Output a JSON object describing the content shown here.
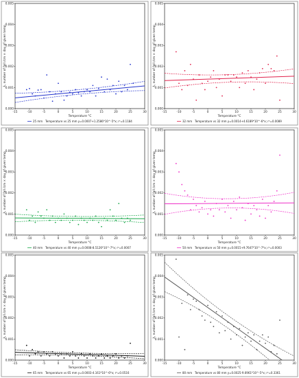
{
  "chart_data": [
    {
      "type": "scatter",
      "color": "#2233cc",
      "xlabel": "Temperature °C",
      "ylabel": "λ, number of fall /cm × day of given temp",
      "xlim": [
        -15,
        30
      ],
      "ylim": [
        0,
        0.005
      ],
      "xticks": [
        "-15",
        "-10",
        "-5",
        "0",
        "5",
        "10",
        "15",
        "20",
        "25",
        "30"
      ],
      "yticks": [
        "0.000",
        "0.001",
        "0.002",
        "0.003",
        "0.004",
        "0.005"
      ],
      "series_label": "25 mm",
      "legend_text": "Temperature vs 25 mm     y=0.0007+1.2586*10^-5*x; r²=0.1184",
      "fit": {
        "intercept": 0.0007,
        "slope": 1.2586e-05
      },
      "ci_spread": [
        0.00022,
        0.00011,
        0.00022
      ],
      "points": [
        [
          -11,
          0.0009
        ],
        [
          -10,
          0.00095
        ],
        [
          -9,
          0.0007
        ],
        [
          -8,
          0.0006
        ],
        [
          -7,
          0.00088
        ],
        [
          -6,
          0.0009
        ],
        [
          -5,
          0.0005
        ],
        [
          -4,
          0.0016
        ],
        [
          -3,
          0.0008
        ],
        [
          -2,
          0.00035
        ],
        [
          -1,
          0.0007
        ],
        [
          0,
          0.0012
        ],
        [
          1,
          0.0008
        ],
        [
          2,
          0.0004
        ],
        [
          3,
          0.0006
        ],
        [
          4,
          0.00078
        ],
        [
          5,
          0.0007
        ],
        [
          6,
          0.0009
        ],
        [
          7,
          0.00075
        ],
        [
          8,
          0.0006
        ],
        [
          9,
          0.0008
        ],
        [
          10,
          0.0009
        ],
        [
          11,
          0.0008
        ],
        [
          12,
          0.0011
        ],
        [
          13,
          0.0006
        ],
        [
          14,
          0.00095
        ],
        [
          15,
          0.0015
        ],
        [
          16,
          0.0008
        ],
        [
          17,
          0.0014
        ],
        [
          18,
          0.0009
        ],
        [
          19,
          0.0011
        ],
        [
          20,
          0.0007
        ],
        [
          21,
          0.0013
        ],
        [
          22,
          0.0008
        ],
        [
          23,
          0.0011
        ],
        [
          24,
          0.0009
        ],
        [
          25,
          0.0021
        ],
        [
          26,
          0.0012
        ]
      ]
    },
    {
      "type": "scatter",
      "color": "#e0204a",
      "xlabel": "Temperature °C",
      "ylabel": "λ, number of fall /cm × day of given temp",
      "xlim": [
        -15,
        30
      ],
      "ylim": [
        0,
        0.005
      ],
      "xticks": [
        "-15",
        "-10",
        "-5",
        "0",
        "5",
        "10",
        "15",
        "20",
        "25",
        "30"
      ],
      "yticks": [
        "0.000",
        "0.001",
        "0.002",
        "0.003",
        "0.004",
        "0.005"
      ],
      "series_label": "32 mm",
      "legend_text": "Temperature vs 32 mm     y=0.0014+4.6189*10^-6*x; r²=0.0089",
      "fit": {
        "intercept": 0.0014,
        "slope": 4.6189e-06
      },
      "ci_spread": [
        0.00035,
        0.00018,
        0.00035
      ],
      "points": [
        [
          -11,
          0.0027
        ],
        [
          -10,
          0.0012
        ],
        [
          -9,
          0.0009
        ],
        [
          -8,
          0.0018
        ],
        [
          -7,
          0.0011
        ],
        [
          -6,
          0.0021
        ],
        [
          -5,
          0.0014
        ],
        [
          -4,
          0.0004
        ],
        [
          -3,
          0.0016
        ],
        [
          -2,
          0.0012
        ],
        [
          -1,
          0.0009
        ],
        [
          0,
          0.0013
        ],
        [
          1,
          0.0015
        ],
        [
          2,
          0.0018
        ],
        [
          3,
          0.001
        ],
        [
          4,
          0.0014
        ],
        [
          5,
          0.0006
        ],
        [
          6,
          0.0016
        ],
        [
          7,
          0.0016
        ],
        [
          8,
          0.0013
        ],
        [
          9,
          0.0016
        ],
        [
          10,
          0.0015
        ],
        [
          11,
          0.001
        ],
        [
          12,
          0.0017
        ],
        [
          13,
          0.0012
        ],
        [
          14,
          0.0018
        ],
        [
          15,
          0.0015
        ],
        [
          16,
          0.0009
        ],
        [
          17,
          0.0014
        ],
        [
          18,
          0.0017
        ],
        [
          19,
          0.0019
        ],
        [
          20,
          0.0012
        ],
        [
          21,
          0.0021
        ],
        [
          22,
          0.0019
        ],
        [
          23,
          0.0018
        ],
        [
          24,
          0.0025
        ],
        [
          25,
          0.0004
        ]
      ]
    },
    {
      "type": "scatter",
      "color": "#1aa84a",
      "xlabel": "Temperature °C",
      "ylabel": "λ, number of fall /cm × day of given temp",
      "xlim": [
        -15,
        30
      ],
      "ylim": [
        0,
        0.005
      ],
      "xticks": [
        "-15",
        "-10",
        "-5",
        "0",
        "5",
        "10",
        "15",
        "20",
        "25",
        "30"
      ],
      "yticks": [
        "0.000",
        "0.001",
        "0.002",
        "0.003",
        "0.004",
        "0.005"
      ],
      "series_label": "40 mm",
      "legend_text": "Temperature vs 40 mm     y=0.0008-8.5126*10^-7*x; r²=0.0007",
      "fit": {
        "intercept": 0.0008,
        "slope": -8.5126e-07
      },
      "ci_spread": [
        0.00018,
        9e-05,
        0.00018
      ],
      "points": [
        [
          -11,
          0.0012
        ],
        [
          -10,
          0.0007
        ],
        [
          -9,
          0.0009
        ],
        [
          -8,
          0.0006
        ],
        [
          -7,
          0.0011
        ],
        [
          -6,
          0.0009
        ],
        [
          -5,
          0.0008
        ],
        [
          -4,
          0.0012
        ],
        [
          -3,
          0.0007
        ],
        [
          -2,
          0.0009
        ],
        [
          -1,
          0.0006
        ],
        [
          0,
          0.0008
        ],
        [
          1,
          0.0007
        ],
        [
          2,
          0.001
        ],
        [
          3,
          0.0008
        ],
        [
          4,
          0.0006
        ],
        [
          5,
          0.0007
        ],
        [
          6,
          0.0009
        ],
        [
          7,
          0.0005
        ],
        [
          8,
          0.0008
        ],
        [
          9,
          0.0007
        ],
        [
          10,
          0.0006
        ],
        [
          11,
          0.0008
        ],
        [
          12,
          0.0007
        ],
        [
          13,
          0.0009
        ],
        [
          14,
          0.0006
        ],
        [
          15,
          0.0004
        ],
        [
          16,
          0.0008
        ],
        [
          17,
          0.0007
        ],
        [
          18,
          0.0012
        ],
        [
          19,
          0.0009
        ],
        [
          20,
          0.0007
        ],
        [
          21,
          0.0015
        ],
        [
          22,
          0.0008
        ],
        [
          23,
          0.0006
        ],
        [
          24,
          0.0008
        ],
        [
          25,
          0.0007
        ]
      ]
    },
    {
      "type": "scatter",
      "color": "#ee30c8",
      "xlabel": "Temperature °C",
      "ylabel": "λ, number of fall /cm × day of given temp",
      "xlim": [
        -15,
        30
      ],
      "ylim": [
        0,
        0.005
      ],
      "xticks": [
        "-15",
        "-10",
        "-5",
        "0",
        "5",
        "10",
        "15",
        "20",
        "25",
        "30"
      ],
      "yticks": [
        "0.000",
        "0.001",
        "0.002",
        "0.003",
        "0.004",
        "0.005"
      ],
      "series_label": "50 mm",
      "legend_text": "Temperature vs 50 mm     y=0.0015+9.7647*10^-7*x; r²=0.0003",
      "fit": {
        "intercept": 0.0015,
        "slope": 9.7647e-07
      },
      "ci_spread": [
        0.0005,
        0.00022,
        0.0005
      ],
      "points": [
        [
          -11,
          0.0034
        ],
        [
          -10,
          0.003
        ],
        [
          -9,
          0.0024
        ],
        [
          -8,
          0.0021
        ],
        [
          -7,
          0.0019
        ],
        [
          -6,
          0.0012
        ],
        [
          -5,
          0.0017
        ],
        [
          -4,
          0.0014
        ],
        [
          -3,
          0.0011
        ],
        [
          -2,
          0.0013
        ],
        [
          -1,
          0.0016
        ],
        [
          0,
          0.001
        ],
        [
          1,
          0.0012
        ],
        [
          2,
          0.0009
        ],
        [
          3,
          0.0015
        ],
        [
          4,
          0.0012
        ],
        [
          5,
          0.0017
        ],
        [
          6,
          0.0011
        ],
        [
          7,
          0.0014
        ],
        [
          8,
          0.0008
        ],
        [
          9,
          0.0016
        ],
        [
          10,
          0.0012
        ],
        [
          11,
          0.0018
        ],
        [
          12,
          0.0013
        ],
        [
          13,
          0.0007
        ],
        [
          14,
          0.0015
        ],
        [
          15,
          0.001
        ],
        [
          16,
          0.0014
        ],
        [
          17,
          0.0012
        ],
        [
          18,
          0.0009
        ],
        [
          19,
          0.0017
        ],
        [
          20,
          0.0008
        ],
        [
          21,
          0.0014
        ],
        [
          22,
          0.0011
        ],
        [
          23,
          0.0016
        ],
        [
          24,
          0.0021
        ],
        [
          25,
          0.0038
        ]
      ]
    },
    {
      "type": "scatter",
      "color": "#111111",
      "xlabel": "Temperature °C",
      "ylabel": "λ, number of fall /cm × day of given temp",
      "xlim": [
        -15,
        30
      ],
      "ylim": [
        0,
        0.005
      ],
      "xticks": [
        "-15",
        "-10",
        "-5",
        "0",
        "5",
        "10",
        "15",
        "20",
        "25",
        "30"
      ],
      "yticks": [
        "0.000",
        "0.001",
        "0.002",
        "0.003",
        "0.004",
        "0.005"
      ],
      "series_label": "65 mm",
      "legend_text": "Temperature vs 65 mm     y=0.0003-4.161*10^-6*x; r²=0.0516",
      "fit": {
        "intercept": 0.00031,
        "slope": -4.161e-06
      },
      "ci_spread": [
        0.00012,
        6e-05,
        0.00012
      ],
      "points": [
        [
          -11,
          0.0007
        ],
        [
          -10,
          0.0002
        ],
        [
          -9,
          0.0005
        ],
        [
          -8,
          0.0003
        ],
        [
          -7,
          0.0004
        ],
        [
          -6,
          0.0002
        ],
        [
          -5,
          0.0004
        ],
        [
          -4,
          0.0003
        ],
        [
          -3,
          0.0002
        ],
        [
          -2,
          0.0004
        ],
        [
          -1,
          0.0003
        ],
        [
          0,
          0.0002
        ],
        [
          1,
          0.0003
        ],
        [
          2,
          0.0001
        ],
        [
          3,
          0.0003
        ],
        [
          4,
          0.0002
        ],
        [
          5,
          0.0004
        ],
        [
          6,
          0.0002
        ],
        [
          7,
          0.0001
        ],
        [
          8,
          0.0003
        ],
        [
          9,
          0.0002
        ],
        [
          10,
          0.0001
        ],
        [
          11,
          0.0003
        ],
        [
          12,
          0.0002
        ],
        [
          13,
          0.0001
        ],
        [
          14,
          0.0002
        ],
        [
          15,
          0.0003
        ],
        [
          16,
          0.0001
        ],
        [
          17,
          0.0002
        ],
        [
          18,
          0.0001
        ],
        [
          19,
          0.0002
        ],
        [
          20,
          0.0003
        ],
        [
          21,
          0.0001
        ],
        [
          22,
          0.0002
        ],
        [
          23,
          0.0001
        ],
        [
          24,
          0.0002
        ],
        [
          25,
          0.0008
        ]
      ]
    },
    {
      "type": "scatter",
      "color": "#555555",
      "xlabel": "Temperature °C",
      "ylabel": "λ, number of fall /cm × day of given temp",
      "xlim": [
        -15,
        30
      ],
      "ylim": [
        0,
        0.005
      ],
      "xticks": [
        "-15",
        "-10",
        "-5",
        "0",
        "5",
        "10",
        "15",
        "20",
        "25",
        "30"
      ],
      "yticks": [
        "0.000",
        "0.001",
        "0.002",
        "0.003",
        "0.004",
        "0.005"
      ],
      "series_label": "80 mm",
      "legend_text": "Temperature vs 80 mm     y=0.0025-9.6961*10^-5*x; r²=0.3361",
      "fit": {
        "intercept": 0.0025,
        "slope": -9.6961e-05
      },
      "ci_spread": [
        0.0007,
        0.0003,
        0.0006
      ],
      "points": [
        [
          -11,
          0.0048
        ],
        [
          -10,
          0.0011
        ],
        [
          -9,
          0.0027
        ],
        [
          -8,
          0.0005
        ],
        [
          -7,
          0.0031
        ],
        [
          -6,
          0.0024
        ],
        [
          -5,
          0.0029
        ],
        [
          -4,
          0.0028
        ],
        [
          -3,
          0.0024
        ],
        [
          -2,
          0.0021
        ],
        [
          -1,
          0.0019
        ],
        [
          0,
          0.0026
        ],
        [
          1,
          0.0018
        ],
        [
          2,
          0.0016
        ],
        [
          3,
          0.0023
        ],
        [
          4,
          0.0013
        ],
        [
          5,
          0.0021
        ],
        [
          6,
          0.0014
        ],
        [
          7,
          0.0018
        ],
        [
          8,
          0.001
        ],
        [
          9,
          0.0016
        ],
        [
          10,
          0.0012
        ],
        [
          11,
          0.0015
        ],
        [
          12,
          0.0007
        ],
        [
          13,
          0.0011
        ],
        [
          14,
          0.0013
        ],
        [
          15,
          0.0009
        ],
        [
          16,
          0.0012
        ],
        [
          17,
          0.0005
        ],
        [
          18,
          0.0009
        ],
        [
          19,
          0.0012
        ],
        [
          20,
          0.0008
        ],
        [
          21,
          0.0011
        ],
        [
          22,
          0.0004
        ],
        [
          23,
          0.0007
        ],
        [
          24,
          0.0003
        ],
        [
          25,
          0.0019
        ]
      ]
    }
  ]
}
